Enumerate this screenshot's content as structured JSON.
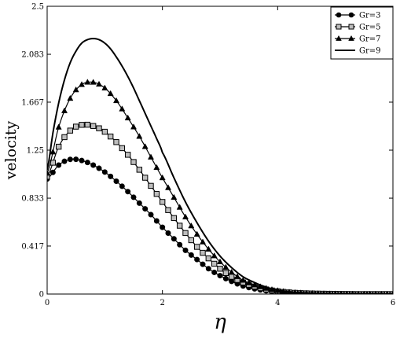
{
  "chart_data": {
    "type": "line",
    "xlabel": "η",
    "ylabel": "velocity",
    "xlim": [
      0,
      6
    ],
    "ylim": [
      0,
      2.5
    ],
    "xticks": [
      "0",
      "2",
      "4",
      "6"
    ],
    "yticks": [
      "0",
      "0.417",
      "0.833",
      "1.25",
      "1.667",
      "2.083",
      "2.5"
    ],
    "grid": false,
    "legend_position": "top-right",
    "series": [
      {
        "name": "Gr=3",
        "marker": "circle",
        "line_style": "solid",
        "x": [
          0,
          0.2,
          0.4,
          0.6,
          0.8,
          1.0,
          1.2,
          1.4,
          1.6,
          1.8,
          2.0,
          2.2,
          2.4,
          2.6,
          2.8,
          3.0,
          3.2,
          3.4,
          3.6,
          3.8,
          4.0,
          4.2,
          4.4,
          4.6,
          4.8,
          5.0,
          5.2,
          5.4,
          5.6,
          5.8,
          6.0
        ],
        "y": [
          1.0,
          1.12,
          1.17,
          1.16,
          1.12,
          1.06,
          0.98,
          0.89,
          0.79,
          0.69,
          0.58,
          0.48,
          0.38,
          0.3,
          0.22,
          0.16,
          0.11,
          0.07,
          0.045,
          0.028,
          0.017,
          0.01,
          0.006,
          0.004,
          0.002,
          0.001,
          0.001,
          0.0,
          0.0,
          0.0,
          0.0
        ]
      },
      {
        "name": "Gr=5",
        "marker": "square",
        "line_style": "solid",
        "x": [
          0,
          0.2,
          0.4,
          0.6,
          0.8,
          1.0,
          1.2,
          1.4,
          1.6,
          1.8,
          2.0,
          2.2,
          2.4,
          2.6,
          2.8,
          3.0,
          3.2,
          3.4,
          3.6,
          3.8,
          4.0,
          4.2,
          4.4,
          4.6,
          4.8,
          5.0,
          5.2,
          5.4,
          5.6,
          5.8,
          6.0
        ],
        "y": [
          1.02,
          1.28,
          1.42,
          1.47,
          1.46,
          1.41,
          1.32,
          1.21,
          1.08,
          0.94,
          0.8,
          0.66,
          0.53,
          0.41,
          0.31,
          0.22,
          0.15,
          0.1,
          0.065,
          0.04,
          0.024,
          0.014,
          0.008,
          0.005,
          0.003,
          0.002,
          0.001,
          0.0,
          0.0,
          0.0,
          0.0
        ]
      },
      {
        "name": "Gr=7",
        "marker": "triangle",
        "line_style": "solid",
        "x": [
          0,
          0.2,
          0.4,
          0.6,
          0.8,
          1.0,
          1.2,
          1.4,
          1.6,
          1.8,
          2.0,
          2.2,
          2.4,
          2.6,
          2.8,
          3.0,
          3.2,
          3.4,
          3.6,
          3.8,
          4.0,
          4.2,
          4.4,
          4.6,
          4.8,
          5.0,
          5.2,
          5.4,
          5.6,
          5.8,
          6.0
        ],
        "y": [
          1.05,
          1.45,
          1.7,
          1.82,
          1.84,
          1.79,
          1.68,
          1.53,
          1.37,
          1.19,
          1.01,
          0.84,
          0.67,
          0.52,
          0.39,
          0.28,
          0.19,
          0.12,
          0.08,
          0.05,
          0.03,
          0.017,
          0.01,
          0.006,
          0.003,
          0.002,
          0.001,
          0.0,
          0.0,
          0.0,
          0.0
        ]
      },
      {
        "name": "Gr=9",
        "marker": "none",
        "line_style": "solid",
        "x": [
          0,
          0.1,
          0.2,
          0.3,
          0.4,
          0.5,
          0.6,
          0.7,
          0.8,
          0.9,
          1.0,
          1.1,
          1.2,
          1.3,
          1.4,
          1.5,
          1.6,
          1.7,
          1.8,
          1.9,
          2.0,
          2.2,
          2.4,
          2.6,
          2.8,
          3.0,
          3.2,
          3.4,
          3.6,
          3.8,
          4.0,
          4.2,
          4.4,
          4.6,
          4.8,
          5.0,
          5.5,
          6.0
        ],
        "y": [
          1.08,
          1.4,
          1.66,
          1.86,
          2.01,
          2.11,
          2.18,
          2.21,
          2.22,
          2.21,
          2.18,
          2.13,
          2.06,
          1.98,
          1.89,
          1.79,
          1.68,
          1.57,
          1.46,
          1.35,
          1.23,
          1.01,
          0.8,
          0.62,
          0.46,
          0.33,
          0.23,
          0.15,
          0.1,
          0.06,
          0.035,
          0.02,
          0.012,
          0.007,
          0.004,
          0.002,
          0.001,
          0.0
        ]
      }
    ]
  }
}
